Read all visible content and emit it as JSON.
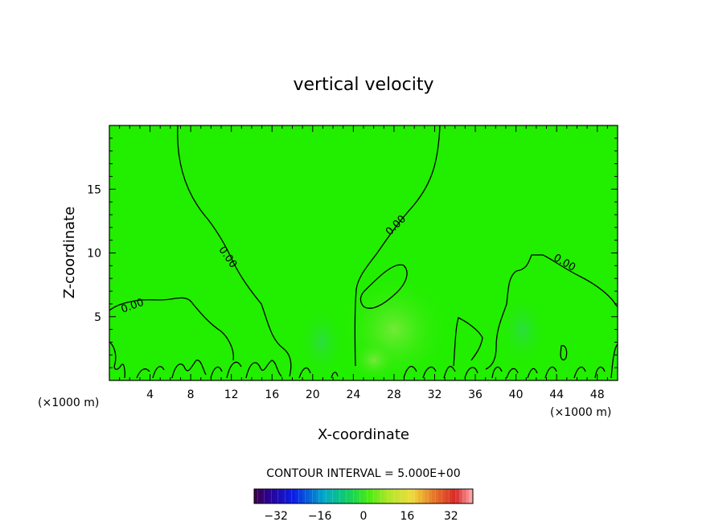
{
  "chart_data": {
    "type": "heatmap",
    "title": "vertical velocity",
    "xlabel": "X-coordinate",
    "ylabel": "Z-coordinate",
    "x_unit": "(×1000 m)",
    "y_unit": "(×1000 m)",
    "xlim": [
      0,
      50
    ],
    "ylim": [
      0,
      20
    ],
    "x_ticks": [
      "4",
      "8",
      "12",
      "16",
      "20",
      "24",
      "28",
      "32",
      "36",
      "40",
      "44",
      "48"
    ],
    "y_ticks": [
      "5",
      "10",
      "15"
    ],
    "contour_interval": "CONTOUR INTERVAL = 5.000E+00",
    "contour_labels": [
      "0.00",
      "0.00",
      "0.00",
      "0.00"
    ],
    "colorbar": {
      "min": -40,
      "max": 40,
      "ticks": [
        "−32",
        "−16",
        "0",
        "16",
        "32"
      ],
      "colormap": "rainbow"
    },
    "field_color": "#22ee00"
  }
}
